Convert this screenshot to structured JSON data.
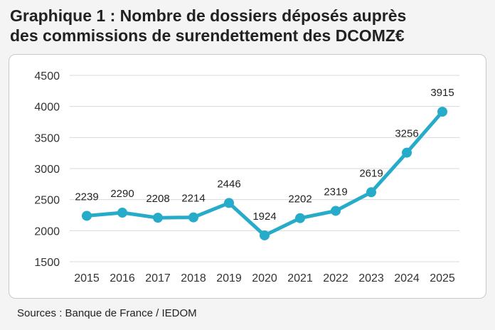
{
  "title": {
    "line1": "Graphique 1 : Nombre de dossiers déposés auprès",
    "line2": "des commissions de surendettement des DCOMZ€"
  },
  "source": "Sources : Banque de France / IEDOM",
  "chart_data": {
    "type": "line",
    "x": [
      "2015",
      "2016",
      "2017",
      "2018",
      "2019",
      "2020",
      "2021",
      "2022",
      "2023",
      "2024",
      "2025"
    ],
    "series": [
      {
        "values": [
          2239,
          2290,
          2208,
          2214,
          2446,
          1924,
          2202,
          2319,
          2619,
          3256,
          3915
        ]
      }
    ],
    "data_labels": [
      "2239",
      "2290",
      "2208",
      "2214",
      "2446",
      "1924",
      "2202",
      "2319",
      "2619",
      "3256",
      "3915"
    ],
    "yticks": [
      1500,
      2000,
      2500,
      3000,
      3500,
      4000,
      4500
    ],
    "ylim": [
      1500,
      4500
    ],
    "grid": true,
    "line_color": "#26acc9",
    "grid_color": "#d9d9d9"
  }
}
